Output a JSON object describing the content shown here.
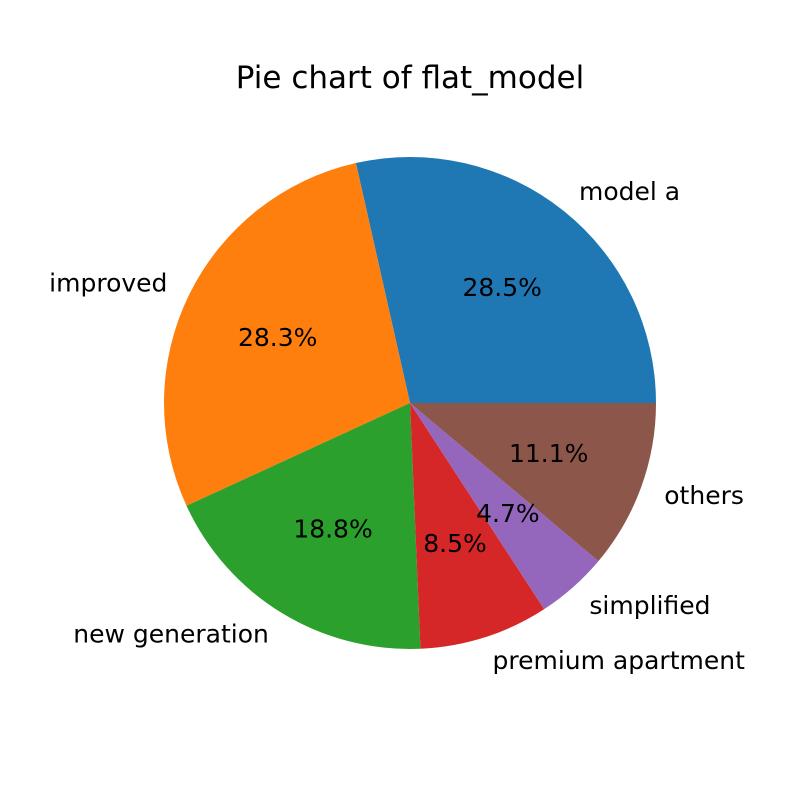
{
  "chart_data": {
    "type": "pie",
    "title": "Pie chart of flat_model",
    "categories": [
      "model a",
      "improved",
      "new generation",
      "premium apartment",
      "simplified",
      "others"
    ],
    "values": [
      28.5,
      28.3,
      18.8,
      8.5,
      4.7,
      11.1
    ],
    "percent_labels": [
      "28.5%",
      "28.3%",
      "18.8%",
      "8.5%",
      "4.7%",
      "11.1%"
    ],
    "colors": [
      "#1f77b4",
      "#ff7f0e",
      "#2ca02c",
      "#d62728",
      "#9467bd",
      "#8c564b"
    ],
    "start_angle_deg": 0,
    "direction": "counterclockwise"
  }
}
